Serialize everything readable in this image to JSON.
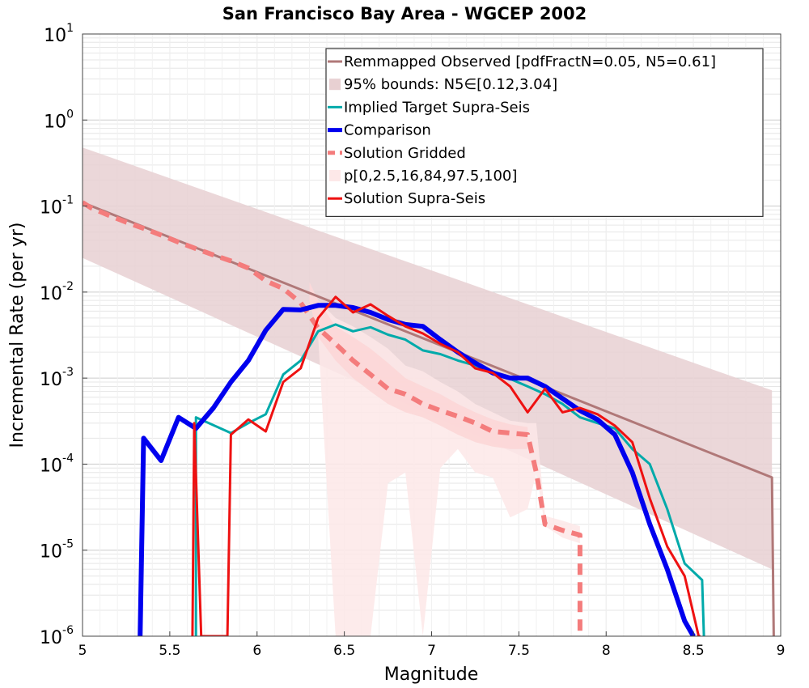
{
  "chart_data": {
    "type": "line",
    "title": "San Francisco Bay Area - WGCEP 2002",
    "xlabel": "Magnitude",
    "ylabel": "Incremental Rate (per yr)",
    "xlim": [
      5,
      9
    ],
    "ylim": [
      1e-06,
      10
    ],
    "y_scale": "log",
    "grid": true,
    "legend_position": "top-right",
    "x_ticks": [
      "5",
      "5.5",
      "6",
      "6.5",
      "7",
      "7.5",
      "8",
      "8.5",
      "9"
    ],
    "y_ticks": [
      {
        "base": "10",
        "exp": "-6",
        "value": 1e-06
      },
      {
        "base": "10",
        "exp": "-5",
        "value": 1e-05
      },
      {
        "base": "10",
        "exp": "-4",
        "value": 0.0001
      },
      {
        "base": "10",
        "exp": "-3",
        "value": 0.001
      },
      {
        "base": "10",
        "exp": "-2",
        "value": 0.01
      },
      {
        "base": "10",
        "exp": "-1",
        "value": 0.1
      },
      {
        "base": "10",
        "exp": "0",
        "value": 1
      },
      {
        "base": "10",
        "exp": "1",
        "value": 10
      }
    ],
    "legend": [
      {
        "label": "Remmapped Observed [pdfFractN=0.05, N5=0.61]",
        "style": "line",
        "color": "#b07878"
      },
      {
        "label": "95% bounds: N5∈[0.12,3.04]",
        "style": "patch",
        "color": "#e8d0d2"
      },
      {
        "label": "Implied Target Supra-Seis",
        "style": "line",
        "color": "#00aaaa"
      },
      {
        "label": "Comparison",
        "style": "thick",
        "color": "#0000ee"
      },
      {
        "label": "Solution Gridded",
        "style": "dash",
        "color": "#f47c7c"
      },
      {
        "label": "p[0,2.5,16,84,97.5,100]",
        "style": "patch",
        "color": "#fde8e8"
      },
      {
        "label": "Solution Supra-Seis",
        "style": "line",
        "color": "#ee1111"
      }
    ],
    "bands": [
      {
        "name": "95% bounds: N5∈[0.12,3.04]",
        "color": "#e8d0d2",
        "x": [
          5.0,
          8.95
        ],
        "lower": [
          0.025,
          6e-06
        ],
        "upper": [
          0.48,
          0.00072
        ]
      },
      {
        "name": "p[0,2.5,16,84,97.5,100]",
        "color": "#fde8e8",
        "x": [
          6.3,
          6.35,
          6.45,
          6.55,
          6.65,
          6.75,
          6.85,
          6.95,
          7.05,
          7.15,
          7.25,
          7.35,
          7.45,
          7.55,
          7.6,
          7.65,
          7.75,
          7.85
        ],
        "lower": [
          0.008,
          0.003,
          1e-06,
          1e-06,
          1e-06,
          6e-05,
          8e-05,
          1e-06,
          9e-05,
          0.00015,
          8e-05,
          7e-05,
          2.4e-05,
          3e-05,
          8e-05,
          1.9e-05,
          1.4e-05,
          1.2e-05
        ],
        "upper": [
          0.013,
          0.008,
          0.005,
          0.004,
          0.003,
          0.0022,
          0.0014,
          0.0012,
          0.0009,
          0.0007,
          0.0005,
          0.0004,
          0.00032,
          0.0003,
          0.0003,
          2.5e-05,
          2.2e-05,
          1.9e-05
        ]
      },
      {
        "name": "p[0,2.5,16,84,97.5,100]",
        "color": "#fbd6d6",
        "x": [
          6.3,
          6.35,
          6.45,
          6.55,
          6.65,
          6.75,
          6.85,
          6.95,
          7.05,
          7.15,
          7.25,
          7.35,
          7.45,
          7.55
        ],
        "lower": [
          0.008,
          0.003,
          0.0016,
          0.001,
          0.0007,
          0.0005,
          0.0004,
          0.00035,
          0.00028,
          0.00022,
          0.00018,
          0.00016,
          0.00015,
          0.00015
        ],
        "upper": [
          0.013,
          0.008,
          0.004,
          0.003,
          0.0022,
          0.0015,
          0.001,
          0.0008,
          0.00065,
          0.0005,
          0.0004,
          0.00033,
          0.00029,
          0.00027
        ]
      }
    ],
    "series": [
      {
        "name": "Remmapped Observed [pdfFractN=0.05, N5=0.61]",
        "color": "#b07878",
        "width": 3,
        "dash": "",
        "x": [
          5.0,
          8.95,
          8.96
        ],
        "y": [
          0.11,
          7e-05,
          1e-06
        ]
      },
      {
        "name": "Solution Gridded",
        "color": "#f47c7c",
        "width": 6,
        "dash": "14,9",
        "x": [
          5.0,
          5.05,
          5.15,
          5.25,
          5.35,
          5.45,
          5.55,
          5.65,
          5.75,
          5.85,
          5.95,
          6.05,
          6.15,
          6.25,
          6.35,
          6.45,
          6.55,
          6.65,
          6.75,
          6.85,
          6.95,
          7.05,
          7.15,
          7.25,
          7.35,
          7.45,
          7.55,
          7.6,
          7.65,
          7.75,
          7.85,
          7.85
        ],
        "y": [
          0.11,
          0.095,
          0.078,
          0.065,
          0.055,
          0.046,
          0.038,
          0.032,
          0.027,
          0.023,
          0.019,
          0.0135,
          0.011,
          0.0075,
          0.0038,
          0.0025,
          0.0016,
          0.0011,
          0.00075,
          0.00065,
          0.0005,
          0.00042,
          0.00036,
          0.0003,
          0.00024,
          0.00023,
          0.00022,
          8e-05,
          2e-05,
          1.7e-05,
          1.5e-05,
          1e-06
        ]
      },
      {
        "name": "Implied Target Supra-Seis",
        "color": "#00aaaa",
        "width": 3,
        "dash": "",
        "x": [
          5.65,
          5.65,
          5.85,
          5.95,
          6.05,
          6.15,
          6.25,
          6.35,
          6.45,
          6.55,
          6.65,
          6.75,
          6.85,
          6.95,
          7.05,
          7.15,
          7.25,
          7.35,
          7.45,
          7.55,
          7.65,
          7.75,
          7.85,
          7.95,
          8.05,
          8.15,
          8.25,
          8.35,
          8.45,
          8.55,
          8.56,
          8.56
        ],
        "y": [
          1e-06,
          0.00035,
          0.00023,
          0.0003,
          0.00038,
          0.0011,
          0.0016,
          0.0035,
          0.0042,
          0.0035,
          0.0039,
          0.0032,
          0.0028,
          0.0021,
          0.0019,
          0.0016,
          0.0014,
          0.0012,
          0.00098,
          0.0008,
          0.00065,
          0.0005,
          0.00035,
          0.0003,
          0.00026,
          0.00015,
          0.0001,
          3e-05,
          7e-06,
          4.5e-06,
          1e-06,
          1e-06
        ]
      },
      {
        "name": "Comparison",
        "color": "#0000ee",
        "width": 6,
        "dash": "",
        "x": [
          5.33,
          5.35,
          5.45,
          5.55,
          5.65,
          5.75,
          5.85,
          5.95,
          6.05,
          6.15,
          6.25,
          6.35,
          6.45,
          6.55,
          6.65,
          6.75,
          6.85,
          6.95,
          7.05,
          7.15,
          7.25,
          7.35,
          7.45,
          7.55,
          7.65,
          7.75,
          7.85,
          7.95,
          8.05,
          8.15,
          8.25,
          8.35,
          8.45,
          8.5,
          8.51
        ],
        "y": [
          1e-06,
          0.0002,
          0.00011,
          0.00035,
          0.00026,
          0.00045,
          0.0009,
          0.0016,
          0.0036,
          0.0063,
          0.0062,
          0.007,
          0.007,
          0.0066,
          0.0058,
          0.0048,
          0.0042,
          0.004,
          0.0028,
          0.002,
          0.0015,
          0.00115,
          0.001,
          0.001,
          0.0008,
          0.00058,
          0.00042,
          0.00033,
          0.00022,
          8e-05,
          2e-05,
          6e-06,
          1.5e-06,
          1e-06,
          1e-06
        ]
      },
      {
        "name": "Solution Supra-Seis",
        "color": "#ee1111",
        "width": 3,
        "dash": "",
        "x": [
          5.63,
          5.64,
          5.68,
          5.69,
          5.83,
          5.85,
          5.95,
          6.05,
          6.15,
          6.25,
          6.35,
          6.45,
          6.55,
          6.65,
          6.75,
          6.85,
          6.95,
          7.05,
          7.15,
          7.25,
          7.35,
          7.45,
          7.55,
          7.65,
          7.75,
          7.85,
          7.95,
          8.05,
          8.15,
          8.25,
          8.35,
          8.45,
          8.53,
          8.54
        ],
        "y": [
          1e-06,
          0.0003,
          1e-06,
          1e-06,
          1e-06,
          0.00022,
          0.00033,
          0.00024,
          0.0009,
          0.0013,
          0.005,
          0.0088,
          0.0058,
          0.0072,
          0.0053,
          0.004,
          0.0033,
          0.0025,
          0.002,
          0.0013,
          0.00115,
          0.0008,
          0.0004,
          0.00075,
          0.0004,
          0.00045,
          0.00038,
          0.00028,
          0.00018,
          4e-05,
          1.1e-05,
          5e-06,
          1e-06,
          1e-06
        ]
      }
    ]
  }
}
